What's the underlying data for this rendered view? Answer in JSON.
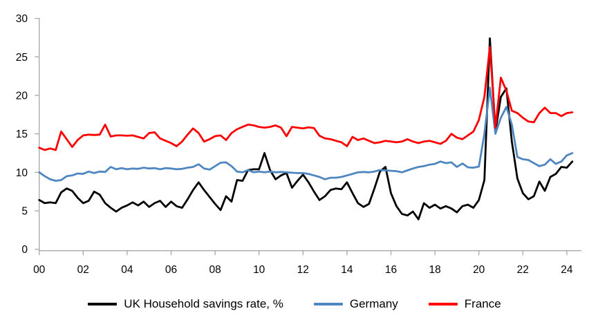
{
  "chart_data": {
    "type": "line",
    "title": "",
    "xlabel": "",
    "ylabel": "",
    "ylim": [
      0,
      30
    ],
    "y_ticks": [
      0,
      5,
      10,
      15,
      20,
      25,
      30
    ],
    "x_tick_years": [
      2000,
      2002,
      2004,
      2006,
      2008,
      2010,
      2012,
      2014,
      2016,
      2018,
      2020,
      2022,
      2024
    ],
    "x_tick_labels": [
      "00",
      "02",
      "04",
      "06",
      "08",
      "10",
      "12",
      "14",
      "16",
      "18",
      "20",
      "22",
      "24"
    ],
    "grid": false,
    "legend_position": "bottom",
    "axis_color": "#a6a6a6",
    "label_color": "#000000",
    "x_start_year": 2000,
    "x_step_years": 0.25,
    "x": [
      2000,
      2000.25,
      2000.5,
      2000.75,
      2001,
      2001.25,
      2001.5,
      2001.75,
      2002,
      2002.25,
      2002.5,
      2002.75,
      2003,
      2003.25,
      2003.5,
      2003.75,
      2004,
      2004.25,
      2004.5,
      2004.75,
      2005,
      2005.25,
      2005.5,
      2005.75,
      2006,
      2006.25,
      2006.5,
      2006.75,
      2007,
      2007.25,
      2007.5,
      2007.75,
      2008,
      2008.25,
      2008.5,
      2008.75,
      2009,
      2009.25,
      2009.5,
      2009.75,
      2010,
      2010.25,
      2010.5,
      2010.75,
      2011,
      2011.25,
      2011.5,
      2011.75,
      2012,
      2012.25,
      2012.5,
      2012.75,
      2013,
      2013.25,
      2013.5,
      2013.75,
      2014,
      2014.25,
      2014.5,
      2014.75,
      2015,
      2015.25,
      2015.5,
      2015.75,
      2016,
      2016.25,
      2016.5,
      2016.75,
      2017,
      2017.25,
      2017.5,
      2017.75,
      2018,
      2018.25,
      2018.5,
      2018.75,
      2019,
      2019.25,
      2019.5,
      2019.75,
      2020,
      2020.25,
      2020.5,
      2020.75,
      2021,
      2021.25,
      2021.5,
      2021.75,
      2022,
      2022.25,
      2022.5,
      2022.75,
      2023,
      2023.25,
      2023.5,
      2023.75,
      2024,
      2024.25
    ],
    "series": [
      {
        "name": "UK Household savings rate, %",
        "color": "#000000",
        "values": [
          6.4,
          6.0,
          6.1,
          6.0,
          7.4,
          7.9,
          7.6,
          6.7,
          6.0,
          6.3,
          7.5,
          7.1,
          6.0,
          5.4,
          4.9,
          5.4,
          5.7,
          6.1,
          5.7,
          6.2,
          5.5,
          6.0,
          6.3,
          5.5,
          6.2,
          5.6,
          5.4,
          6.5,
          7.7,
          8.7,
          7.7,
          6.8,
          5.9,
          5.1,
          6.9,
          6.2,
          9.0,
          8.9,
          10.3,
          10.4,
          10.4,
          12.5,
          10.3,
          9.1,
          9.6,
          9.9,
          8.0,
          8.9,
          9.7,
          8.7,
          7.5,
          6.4,
          6.9,
          7.7,
          7.9,
          7.8,
          8.7,
          7.3,
          6.0,
          5.5,
          5.9,
          7.9,
          10.1,
          10.7,
          7.3,
          5.6,
          4.6,
          4.4,
          4.9,
          3.9,
          6.0,
          5.4,
          5.8,
          5.3,
          5.6,
          5.3,
          4.8,
          5.6,
          5.8,
          5.4,
          6.4,
          9.0,
          27.4,
          15.3,
          19.8,
          20.9,
          14.0,
          9.2,
          7.3,
          6.5,
          6.9,
          8.8,
          7.6,
          9.4,
          9.8,
          10.7,
          10.6,
          11.4
        ]
      },
      {
        "name": "Germany",
        "color": "#4e86c0",
        "values": [
          10.0,
          9.5,
          9.1,
          8.9,
          9.0,
          9.5,
          9.6,
          9.85,
          9.8,
          10.1,
          9.9,
          10.1,
          10.05,
          10.7,
          10.4,
          10.55,
          10.4,
          10.5,
          10.45,
          10.6,
          10.5,
          10.55,
          10.4,
          10.55,
          10.5,
          10.4,
          10.45,
          10.6,
          10.7,
          11.05,
          10.5,
          10.35,
          10.8,
          11.25,
          11.3,
          10.8,
          10.1,
          10.0,
          10.3,
          10.0,
          10.1,
          10.0,
          10.1,
          10.0,
          10.05,
          10.0,
          9.95,
          9.9,
          9.9,
          9.8,
          9.6,
          9.4,
          9.1,
          9.3,
          9.3,
          9.4,
          9.6,
          9.8,
          10.0,
          10.05,
          10.0,
          10.1,
          10.3,
          10.25,
          10.2,
          10.15,
          10.0,
          10.25,
          10.5,
          10.7,
          10.8,
          11.0,
          11.1,
          11.4,
          11.2,
          11.3,
          10.7,
          11.15,
          10.65,
          10.6,
          10.75,
          15.0,
          21.0,
          15.0,
          17.1,
          18.5,
          16.2,
          12.0,
          11.7,
          11.6,
          11.2,
          10.8,
          11.0,
          11.7,
          11.1,
          11.4,
          12.2,
          12.5
        ]
      },
      {
        "name": "France",
        "color": "#ff0000",
        "values": [
          13.2,
          12.9,
          13.1,
          12.9,
          15.3,
          14.3,
          13.3,
          14.2,
          14.8,
          14.9,
          14.85,
          14.9,
          16.2,
          14.65,
          14.8,
          14.8,
          14.75,
          14.8,
          14.6,
          14.4,
          15.1,
          15.2,
          14.4,
          14.1,
          13.8,
          13.4,
          14.0,
          14.9,
          15.7,
          15.1,
          14.0,
          14.3,
          14.7,
          14.8,
          14.2,
          15.1,
          15.6,
          15.9,
          16.2,
          16.1,
          15.9,
          15.8,
          15.9,
          16.1,
          15.8,
          14.7,
          15.9,
          15.8,
          15.7,
          15.85,
          15.75,
          14.75,
          14.4,
          14.3,
          14.1,
          13.9,
          13.4,
          14.6,
          14.2,
          14.4,
          14.1,
          13.8,
          13.9,
          14.1,
          14.0,
          13.9,
          14.0,
          14.3,
          14.0,
          13.8,
          14.0,
          14.1,
          13.9,
          13.7,
          14.1,
          15.0,
          14.5,
          14.3,
          14.8,
          15.3,
          16.8,
          19.8,
          26.3,
          15.8,
          22.3,
          20.6,
          18.0,
          17.7,
          17.1,
          16.6,
          16.5,
          17.7,
          18.4,
          17.7,
          17.7,
          17.3,
          17.7,
          17.8
        ]
      }
    ]
  }
}
